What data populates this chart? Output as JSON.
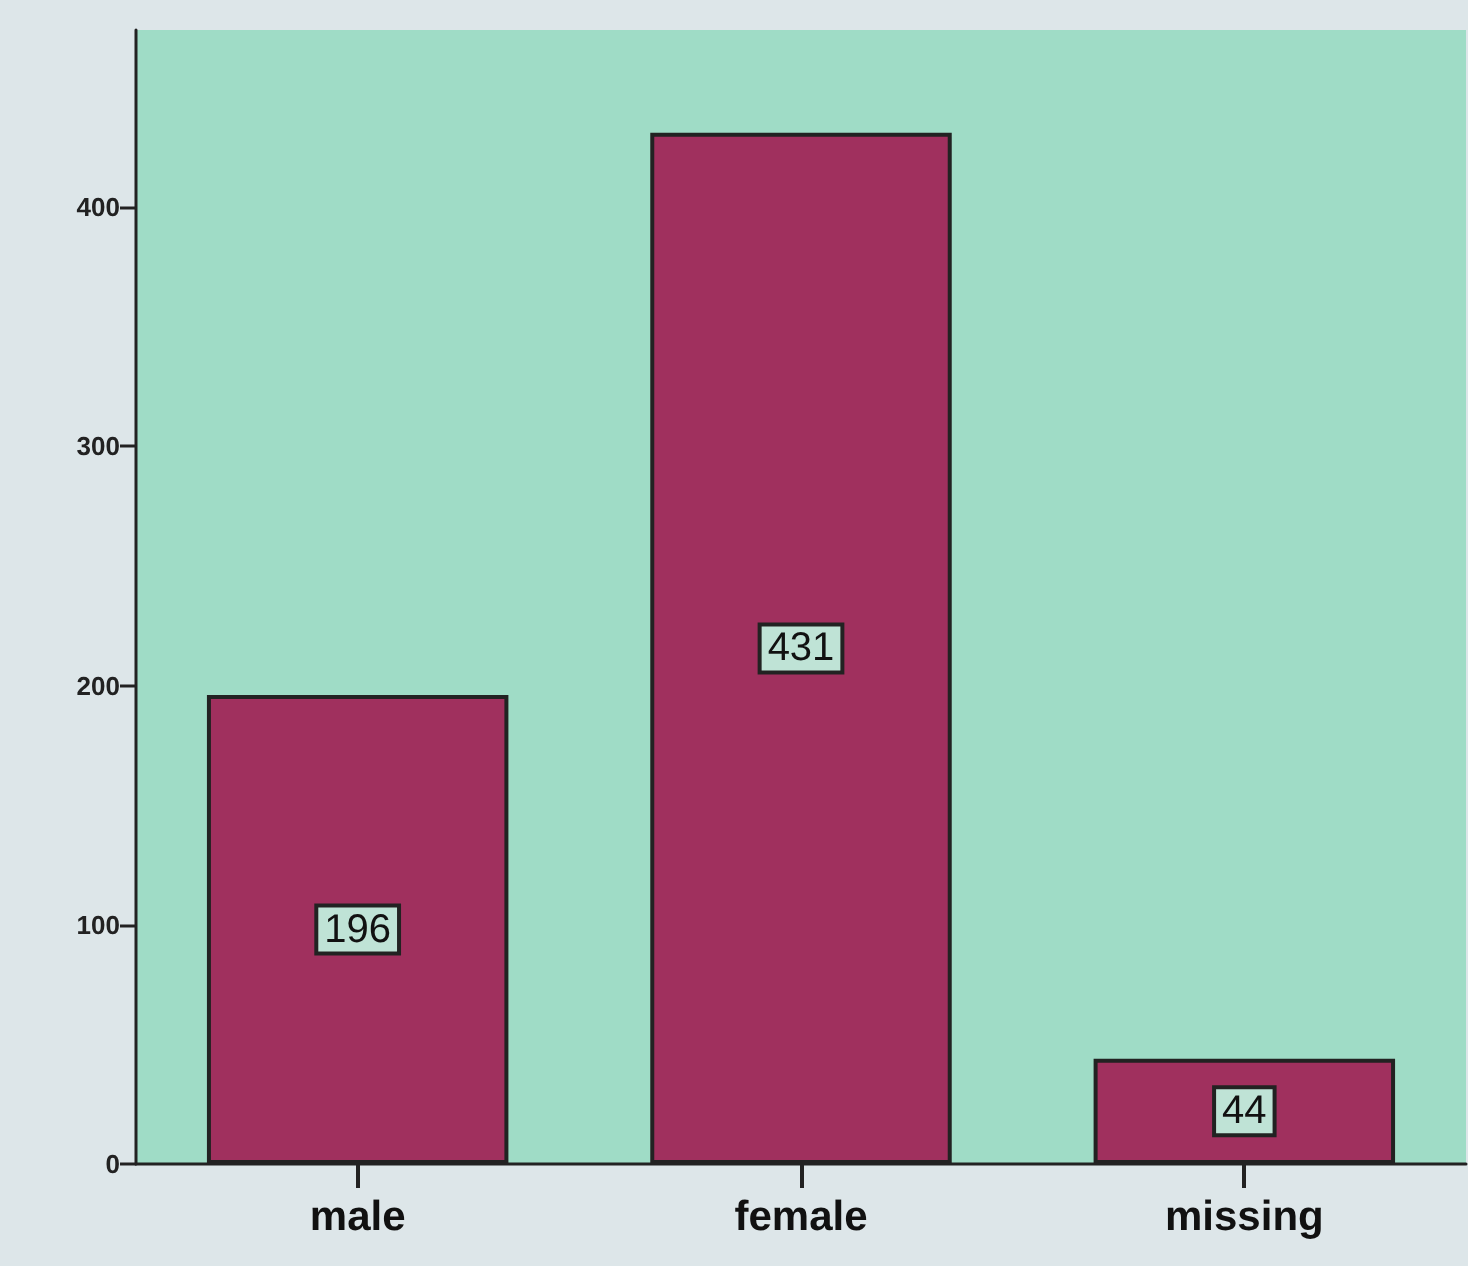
{
  "chart_data": {
    "type": "bar",
    "categories": [
      "male",
      "female",
      "missing"
    ],
    "values": [
      196,
      431,
      44
    ],
    "color": "#a0305e",
    "ylim": [
      0,
      474
    ],
    "yticks": [
      0,
      100,
      200,
      300,
      400
    ],
    "grid": false,
    "data_labels": true
  }
}
